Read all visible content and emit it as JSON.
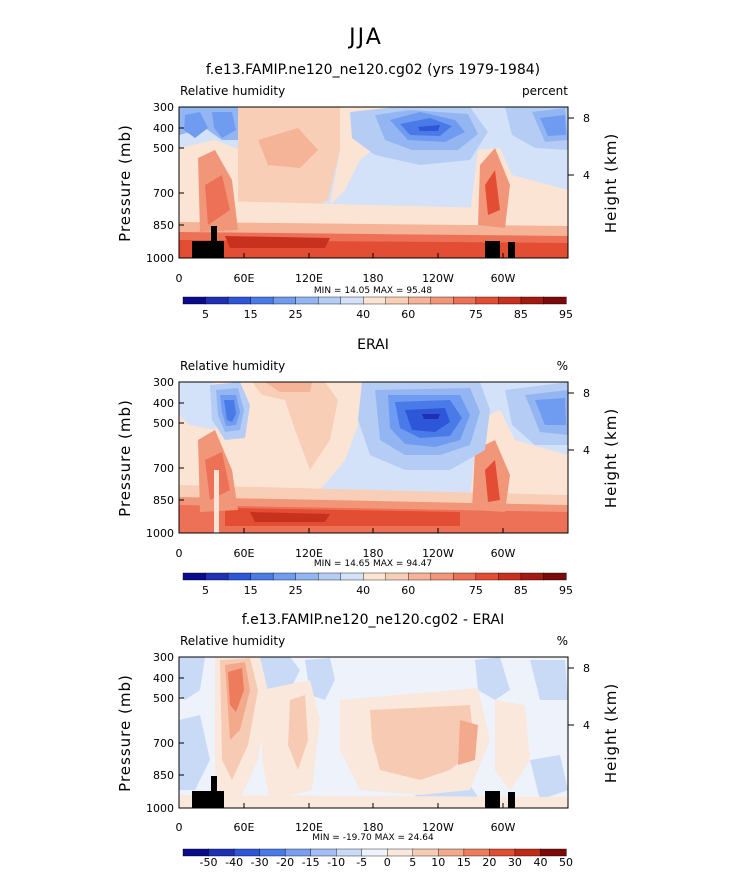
{
  "figure": {
    "suptitle": "JJA"
  },
  "chart_data": [
    {
      "type": "heatmap",
      "title": "f.e13.FAMIP.ne120_ne120.cg02 (yrs 1979-1984)",
      "left_label": "Relative humidity",
      "right_label": "percent",
      "ylabel": "Pressure (mb)",
      "ylabel_right": "Height (km)",
      "x_ticks": [
        "0",
        "60E",
        "120E",
        "180",
        "120W",
        "60W"
      ],
      "y_ticks": [
        "300",
        "400",
        "500",
        "700",
        "850",
        "1000"
      ],
      "y_right_ticks": [
        "8",
        "4"
      ],
      "minmax": "MIN =   14.05   MAX =   95.48",
      "colorbar_levels": [
        "5",
        "10",
        "15",
        "20",
        "25",
        "30",
        "35",
        "40",
        "50",
        "60",
        "65",
        "70",
        "75",
        "80",
        "85",
        "90",
        "95"
      ],
      "colorbar_labels": [
        "5",
        "15",
        "25",
        "40",
        "60",
        "75",
        "85",
        "95"
      ],
      "topography_mask": true
    },
    {
      "type": "heatmap",
      "title": "ERAI",
      "left_label": "Relative humidity",
      "right_label": "%",
      "ylabel": "Pressure (mb)",
      "ylabel_right": "Height (km)",
      "x_ticks": [
        "0",
        "60E",
        "120E",
        "180",
        "120W",
        "60W"
      ],
      "y_ticks": [
        "300",
        "400",
        "500",
        "700",
        "850",
        "1000"
      ],
      "y_right_ticks": [
        "8",
        "4"
      ],
      "minmax": "MIN =   14.65   MAX =   94.47",
      "colorbar_levels": [
        "5",
        "10",
        "15",
        "20",
        "25",
        "30",
        "35",
        "40",
        "50",
        "60",
        "65",
        "70",
        "75",
        "80",
        "85",
        "90",
        "95"
      ],
      "colorbar_labels": [
        "5",
        "15",
        "25",
        "40",
        "60",
        "75",
        "85",
        "95"
      ],
      "topography_mask": false
    },
    {
      "type": "heatmap",
      "title": "f.e13.FAMIP.ne120_ne120.cg02 - ERAI",
      "left_label": "Relative humidity",
      "right_label": "%",
      "ylabel": "Pressure (mb)",
      "ylabel_right": "Height (km)",
      "x_ticks": [
        "0",
        "60E",
        "120E",
        "180",
        "120W",
        "60W"
      ],
      "y_ticks": [
        "300",
        "400",
        "500",
        "700",
        "850",
        "1000"
      ],
      "y_right_ticks": [
        "8",
        "4"
      ],
      "minmax": "MIN = -19.70   MAX =   24.64",
      "colorbar_levels": [
        "-50",
        "-40",
        "-30",
        "-20",
        "-15",
        "-10",
        "-5",
        "0",
        "5",
        "10",
        "15",
        "20",
        "30",
        "40",
        "50"
      ],
      "colorbar_labels": [
        "-50",
        "-40",
        "-30",
        "-20",
        "-15",
        "-10",
        "-5",
        "0",
        "5",
        "10",
        "15",
        "20",
        "30",
        "40",
        "50"
      ],
      "topography_mask": true
    }
  ],
  "colors": {
    "blue_red_scale": [
      "#0a0a8c",
      "#1f30b4",
      "#2d56d8",
      "#4a7ae8",
      "#6f9bf0",
      "#93b6f3",
      "#b5cdf5",
      "#d3e2f8",
      "#fbe4d4",
      "#f8cfb6",
      "#f5b398",
      "#f2967a",
      "#ec7156",
      "#e24d33",
      "#c8311d",
      "#a31a10",
      "#7c0a0a"
    ],
    "diff_scale": [
      "#0a0a8c",
      "#1f30b4",
      "#2d56d8",
      "#4a7ae8",
      "#7a9ff0",
      "#a4bef5",
      "#c9daf7",
      "#eef2fb",
      "#fbe8dc",
      "#f7cbb3",
      "#f3a98b",
      "#ec7c5c",
      "#df4e33",
      "#bf2a17",
      "#7c0a0a"
    ],
    "mask": "#000000"
  }
}
